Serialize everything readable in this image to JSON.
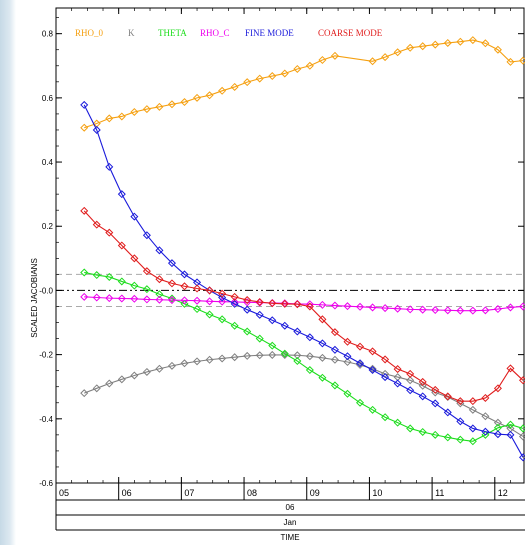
{
  "chart_data": {
    "type": "line",
    "title": "",
    "ylabel": "SCALED JACOBIANS",
    "xlabel": "TIME",
    "xlim": [
      5.0,
      12.45
    ],
    "ylim": [
      -0.6,
      0.88
    ],
    "yticks": [
      -0.6,
      -0.4,
      -0.2,
      0.0,
      0.2,
      0.4,
      0.6,
      0.8
    ],
    "ytick_labels": [
      "-0.6",
      "-0.4",
      "-0.2",
      "-0.0",
      "0.2",
      "0.4",
      "0.6",
      "0.8"
    ],
    "x_ticks": [
      5,
      6,
      7,
      8,
      9,
      10,
      11,
      12
    ],
    "x_tick_labels": [
      "05",
      "06",
      "07",
      "08",
      "09",
      "10",
      "11",
      "12"
    ],
    "axis_rows": [
      "06",
      "Jan"
    ],
    "reference_lines": [
      {
        "y": 0.05,
        "style": "dashed",
        "color": "#aaaaaa"
      },
      {
        "y": -0.05,
        "style": "dashed",
        "color": "#aaaaaa"
      },
      {
        "y": 0.0,
        "style": "dash-dot-dot",
        "color": "#000000"
      }
    ],
    "legend_position": "top-left",
    "x": [
      5.45,
      5.65,
      5.85,
      6.05,
      6.25,
      6.45,
      6.65,
      6.85,
      7.05,
      7.25,
      7.45,
      7.65,
      7.85,
      8.05,
      8.25,
      8.45,
      8.65,
      8.85,
      9.05,
      9.25,
      9.45,
      9.65,
      9.85,
      10.05,
      10.25,
      10.45,
      10.65,
      10.85,
      11.05,
      11.25,
      11.45,
      11.65,
      11.85,
      12.05,
      12.25,
      12.45
    ],
    "series": [
      {
        "name": "RHO_0",
        "color": "#f5a011",
        "x": [
          5.45,
          5.65,
          5.85,
          6.05,
          6.25,
          6.45,
          6.65,
          6.85,
          7.05,
          7.25,
          7.45,
          7.65,
          7.85,
          8.05,
          8.25,
          8.45,
          8.65,
          8.85,
          9.05,
          9.25,
          9.45,
          10.05,
          10.25,
          10.45,
          10.65,
          10.85,
          11.05,
          11.25,
          11.45,
          11.65,
          11.85,
          12.05,
          12.25,
          12.45
        ],
        "values": [
          0.507,
          0.52,
          0.536,
          0.542,
          0.556,
          0.565,
          0.572,
          0.58,
          0.587,
          0.6,
          0.608,
          0.622,
          0.634,
          0.649,
          0.66,
          0.668,
          0.676,
          0.69,
          0.7,
          0.718,
          0.731,
          0.714,
          0.727,
          0.742,
          0.756,
          0.761,
          0.766,
          0.771,
          0.775,
          0.78,
          0.77,
          0.75,
          0.712,
          0.716
        ]
      },
      {
        "name": "K",
        "color": "#808080",
        "x": [
          5.45,
          5.65,
          5.85,
          6.05,
          6.25,
          6.45,
          6.65,
          6.85,
          7.05,
          7.25,
          7.45,
          7.65,
          7.85,
          8.05,
          8.25,
          8.45,
          8.65,
          8.85,
          9.05,
          9.25,
          9.45,
          9.65,
          9.85,
          10.05,
          10.25,
          10.45,
          10.65,
          10.85,
          11.05,
          11.25,
          11.45,
          11.65,
          11.85,
          12.05,
          12.25,
          12.45
        ],
        "values": [
          -0.32,
          -0.305,
          -0.29,
          -0.277,
          -0.265,
          -0.254,
          -0.244,
          -0.235,
          -0.227,
          -0.221,
          -0.216,
          -0.212,
          -0.208,
          -0.204,
          -0.202,
          -0.201,
          -0.201,
          -0.202,
          -0.205,
          -0.21,
          -0.216,
          -0.223,
          -0.232,
          -0.244,
          -0.26,
          -0.27,
          -0.28,
          -0.297,
          -0.318,
          -0.332,
          -0.352,
          -0.372,
          -0.392,
          -0.412,
          -0.43,
          -0.455
        ]
      },
      {
        "name": "THETA",
        "color": "#1ddd1d",
        "x": [
          5.45,
          5.65,
          5.85,
          6.05,
          6.25,
          6.45,
          6.65,
          6.85,
          7.05,
          7.25,
          7.45,
          7.65,
          7.85,
          8.05,
          8.25,
          8.45,
          8.65,
          8.85,
          9.05,
          9.25,
          9.45,
          9.65,
          9.85,
          10.05,
          10.25,
          10.45,
          10.65,
          10.85,
          11.05,
          11.25,
          11.45,
          11.65,
          11.85,
          12.05,
          12.25,
          12.45
        ],
        "values": [
          0.056,
          0.048,
          0.042,
          0.028,
          0.015,
          0.004,
          -0.012,
          -0.025,
          -0.042,
          -0.058,
          -0.075,
          -0.09,
          -0.11,
          -0.128,
          -0.15,
          -0.172,
          -0.197,
          -0.22,
          -0.248,
          -0.272,
          -0.296,
          -0.322,
          -0.35,
          -0.372,
          -0.395,
          -0.412,
          -0.43,
          -0.441,
          -0.45,
          -0.458,
          -0.465,
          -0.47,
          -0.45,
          -0.428,
          -0.418,
          -0.43
        ]
      },
      {
        "name": "RHO_C",
        "color": "#ee00ee",
        "x": [
          5.45,
          5.65,
          5.85,
          6.05,
          6.25,
          6.45,
          6.65,
          6.85,
          7.05,
          7.25,
          7.45,
          7.65,
          7.85,
          8.05,
          8.25,
          8.45,
          8.65,
          8.85,
          9.05,
          9.25,
          9.45,
          9.65,
          9.85,
          10.05,
          10.25,
          10.45,
          10.65,
          10.85,
          11.05,
          11.25,
          11.45,
          11.65,
          11.85,
          12.05,
          12.25,
          12.45
        ],
        "values": [
          -0.02,
          -0.022,
          -0.024,
          -0.025,
          -0.026,
          -0.028,
          -0.029,
          -0.03,
          -0.031,
          -0.032,
          -0.034,
          -0.035,
          -0.036,
          -0.037,
          -0.038,
          -0.039,
          -0.04,
          -0.042,
          -0.043,
          -0.045,
          -0.047,
          -0.049,
          -0.051,
          -0.053,
          -0.055,
          -0.057,
          -0.059,
          -0.06,
          -0.061,
          -0.062,
          -0.063,
          -0.063,
          -0.062,
          -0.058,
          -0.053,
          -0.05
        ]
      },
      {
        "name": "FINE MODE",
        "color": "#1a1adb",
        "x": [
          5.45,
          5.65,
          5.85,
          6.05,
          6.25,
          6.45,
          6.65,
          6.85,
          7.05,
          7.25,
          7.45,
          7.65,
          7.85,
          8.05,
          8.25,
          8.45,
          8.65,
          8.85,
          9.05,
          9.25,
          9.45,
          9.65,
          9.85,
          10.05,
          10.25,
          10.45,
          10.65,
          10.85,
          11.05,
          11.25,
          11.45,
          11.65,
          11.85,
          12.05,
          12.25,
          12.45
        ],
        "values": [
          0.578,
          0.5,
          0.385,
          0.3,
          0.23,
          0.172,
          0.125,
          0.085,
          0.05,
          0.025,
          0.0,
          -0.022,
          -0.042,
          -0.06,
          -0.076,
          -0.093,
          -0.11,
          -0.128,
          -0.146,
          -0.165,
          -0.185,
          -0.205,
          -0.227,
          -0.248,
          -0.27,
          -0.29,
          -0.311,
          -0.33,
          -0.352,
          -0.38,
          -0.408,
          -0.43,
          -0.44,
          -0.448,
          -0.45,
          -0.52
        ]
      },
      {
        "name": "COARSE MODE",
        "color": "#e01d1d",
        "x": [
          5.45,
          5.65,
          5.85,
          6.05,
          6.25,
          6.45,
          6.65,
          6.85,
          7.05,
          7.25,
          7.45,
          7.65,
          7.85,
          8.05,
          8.25,
          8.45,
          8.65,
          8.85,
          9.05,
          9.25,
          9.45,
          9.65,
          9.85,
          10.05,
          10.25,
          10.45,
          10.65,
          10.85,
          11.05,
          11.25,
          11.45,
          11.65,
          11.85,
          12.05,
          12.25,
          12.45
        ],
        "values": [
          0.248,
          0.205,
          0.18,
          0.14,
          0.1,
          0.06,
          0.035,
          0.022,
          0.013,
          0.006,
          0.0,
          -0.01,
          -0.02,
          -0.03,
          -0.036,
          -0.04,
          -0.042,
          -0.043,
          -0.05,
          -0.09,
          -0.13,
          -0.16,
          -0.175,
          -0.19,
          -0.215,
          -0.245,
          -0.26,
          -0.285,
          -0.31,
          -0.33,
          -0.345,
          -0.345,
          -0.335,
          -0.305,
          -0.243,
          -0.28
        ]
      }
    ]
  }
}
